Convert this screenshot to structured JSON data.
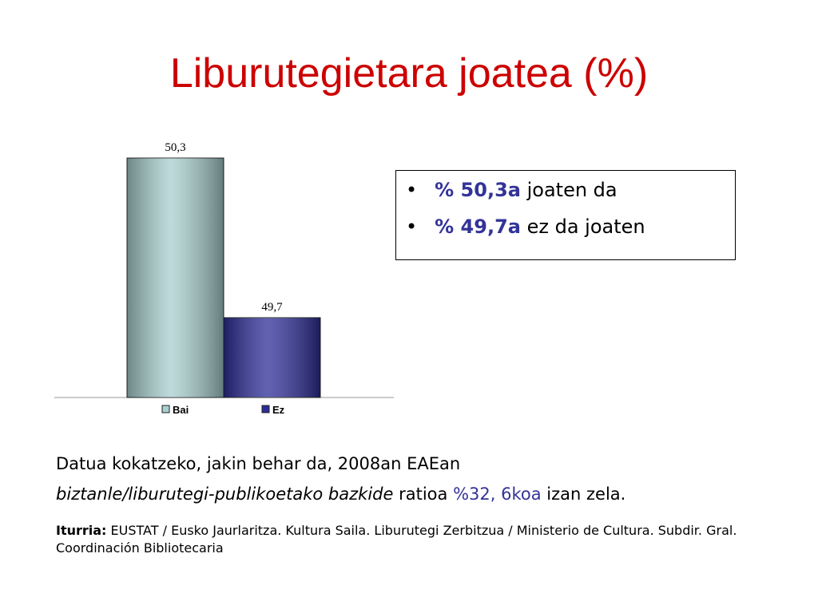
{
  "title": "Liburutegietara joatea (%)",
  "chart_data": {
    "type": "bar",
    "categories": [
      "Bai",
      "Ez"
    ],
    "values": [
      50.3,
      49.7
    ],
    "value_labels": [
      "50,3",
      "49,7"
    ],
    "colors": [
      "#a9cfcf",
      "#2d2d98"
    ],
    "ylim": [
      49.4,
      50.3
    ]
  },
  "bullets": [
    {
      "bold": "% 50,3a",
      "text": "joaten da"
    },
    {
      "bold": "% 49,7a",
      "text": "ez da joaten"
    }
  ],
  "note": {
    "line1": "Datua kokatzeko, jakin behar da, 2008an EAEan",
    "italic": "biztanle/liburutegi-publikoetako bazkide",
    "middle": "ratioa",
    "highlight": "%32, 6koa",
    "end": "izan zela."
  },
  "source": {
    "label": "Iturria:",
    "text": "EUSTAT / Eusko Jaurlaritza. Kultura Saila. Liburutegi Zerbitzua / Ministerio de Cultura. Subdir. Gral. Coordinación Bibliotecaria"
  }
}
